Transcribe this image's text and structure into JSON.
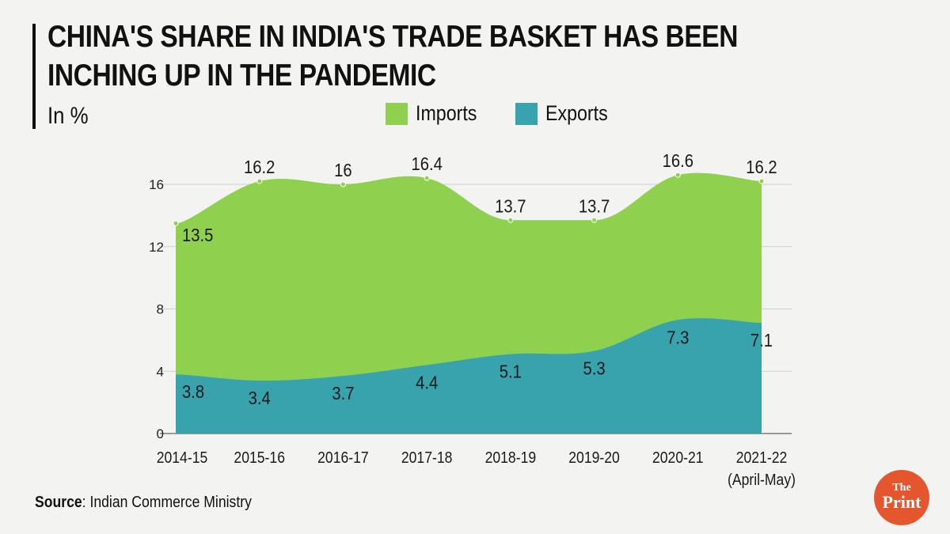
{
  "header": {
    "title": "China's share in India's trade basket has been inching up in the pandemic",
    "subtitle": "In %"
  },
  "legend": {
    "imports_label": "Imports",
    "exports_label": "Exports"
  },
  "colors": {
    "imports": "#8fd14f",
    "exports": "#38a3ad",
    "axis": "#666666",
    "grid": "#cfcfcf",
    "logo": "#e4572e"
  },
  "source": {
    "label": "Source",
    "text": ": Indian Commerce Ministry"
  },
  "logo": {
    "line1": "The",
    "line2": "Print"
  },
  "chart_data": {
    "type": "area",
    "title": "China's share in India's trade basket has been inching up in the pandemic",
    "ylabel": "In %",
    "xlabel": "",
    "ylim": [
      0,
      16
    ],
    "yticks": [
      0,
      4,
      8,
      12,
      16
    ],
    "grid": true,
    "legend_position": "top",
    "categories": [
      "2014-15",
      "2015-16",
      "2016-17",
      "2017-18",
      "2018-19",
      "2019-20",
      "2020-21",
      "2021-22"
    ],
    "category_sublabels": [
      "",
      "",
      "",
      "",
      "",
      "",
      "",
      "(April-May)"
    ],
    "series": [
      {
        "name": "Imports",
        "values": [
          13.5,
          16.2,
          16,
          16.4,
          13.7,
          13.7,
          16.6,
          16.2
        ],
        "labels": [
          "13.5",
          "16.2",
          "16",
          "16.4",
          "13.7",
          "13.7",
          "16.6",
          "16.2"
        ]
      },
      {
        "name": "Exports",
        "values": [
          3.8,
          3.4,
          3.7,
          4.4,
          5.1,
          5.3,
          7.3,
          7.1
        ],
        "labels": [
          "3.8",
          "3.4",
          "3.7",
          "4.4",
          "5.1",
          "5.3",
          "7.3",
          "7.1"
        ]
      }
    ]
  }
}
